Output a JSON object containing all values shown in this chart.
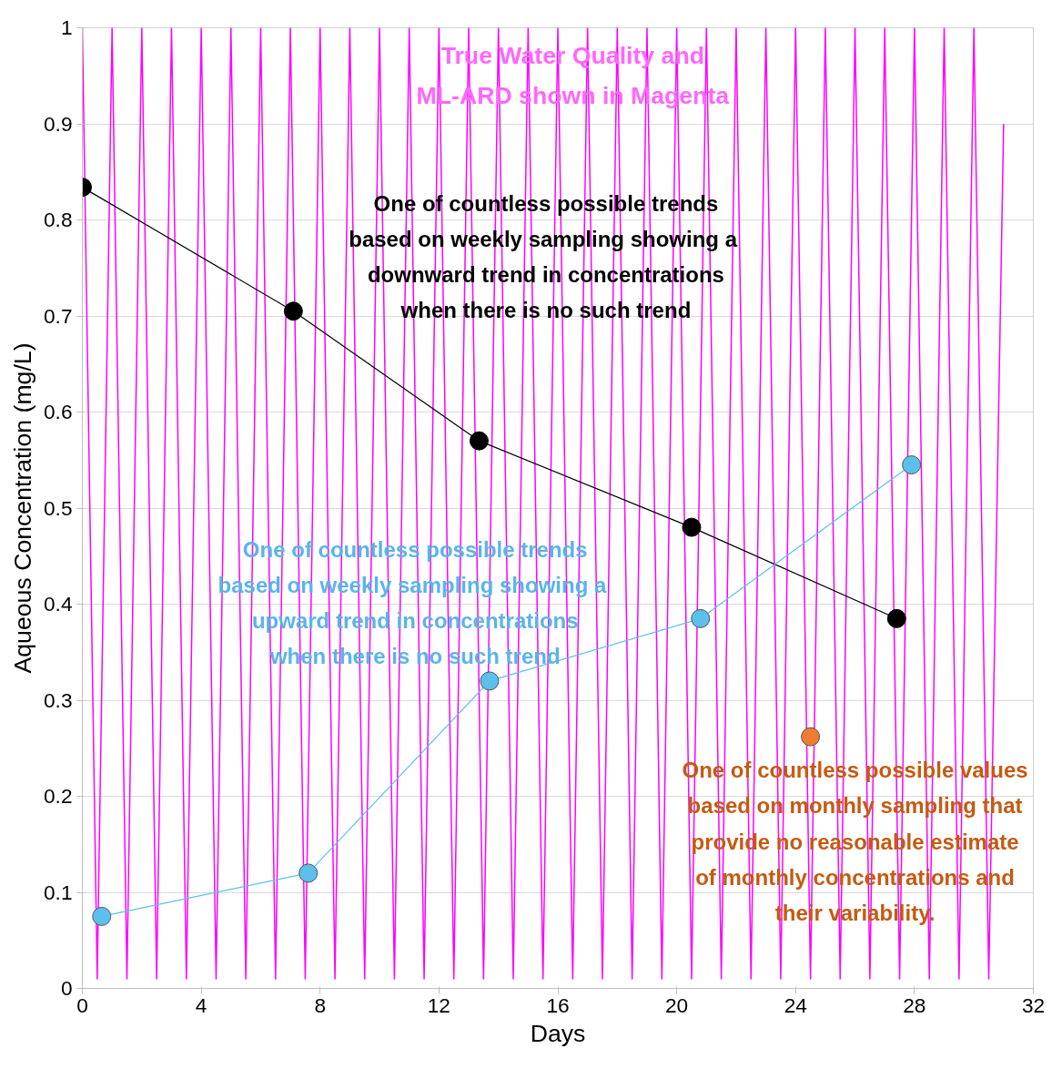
{
  "chart_data": {
    "type": "line",
    "xlabel": "Days",
    "ylabel": "Aqueous Concentration (mg/L)",
    "xlim": [
      0,
      32
    ],
    "xticks": [
      0,
      4,
      8,
      12,
      16,
      20,
      24,
      28,
      32
    ],
    "ylim": [
      0,
      1
    ],
    "yticks": [
      0,
      0.1,
      0.2,
      0.3,
      0.4,
      0.5,
      0.6,
      0.7,
      0.8,
      0.9,
      1
    ],
    "grid": "y",
    "series": [
      {
        "color": "#ff00ff",
        "marker": "none",
        "x": [
          0,
          0.5,
          1,
          1.5,
          2,
          2.5,
          3,
          3.5,
          4,
          4.5,
          5,
          5.5,
          6,
          6.5,
          7,
          7.5,
          8,
          8.5,
          9,
          9.5,
          10,
          10.5,
          11,
          11.5,
          12,
          12.5,
          13,
          13.5,
          14,
          14.5,
          15,
          15.5,
          16,
          16.5,
          17,
          17.5,
          18,
          18.5,
          19,
          19.5,
          20,
          20.5,
          21,
          21.5,
          22,
          22.5,
          23,
          23.5,
          24,
          24.5,
          25,
          25.5,
          26,
          26.5,
          27,
          27.5,
          28,
          28.5,
          29,
          29.5,
          30,
          30.5,
          31
        ],
        "values": [
          1,
          0.01,
          1,
          0.01,
          1,
          0.01,
          1,
          0.01,
          1,
          0.01,
          1,
          0.01,
          1,
          0.01,
          1,
          0.01,
          1,
          0.01,
          1,
          0.01,
          1,
          0.01,
          1,
          0.01,
          1,
          0.01,
          1,
          0.01,
          1,
          0.01,
          1,
          0.01,
          1,
          0.01,
          1,
          0.01,
          1,
          0.01,
          1,
          0.01,
          1,
          0.01,
          1,
          0.01,
          1,
          0.01,
          1,
          0.01,
          1,
          0.01,
          1,
          0.01,
          1,
          0.01,
          1,
          0.01,
          1,
          0.01,
          1,
          0.01,
          1,
          0.01,
          0.9
        ]
      },
      {
        "color": "#000000",
        "marker": "circle",
        "x": [
          0,
          7.1,
          13.35,
          20.5,
          27.4
        ],
        "values": [
          0.834,
          0.705,
          0.57,
          0.48,
          0.385
        ]
      },
      {
        "color": "#5bc0eb",
        "marker": "circle",
        "x": [
          0.65,
          7.6,
          13.7,
          20.8,
          27.9
        ],
        "values": [
          0.075,
          0.12,
          0.32,
          0.385,
          0.545
        ]
      },
      {
        "type": "scatter",
        "color": "#ed7d31",
        "marker": "circle",
        "x": [
          24.5
        ],
        "values": [
          0.262
        ]
      }
    ],
    "annotations": [
      "True Water Quality and\nML-ARD shown in Magenta",
      "One of countless possible trends\nbased on weekly  sampling showing a\ndownward trend in concentrations\nwhen there is no such trend",
      "One of countless possible trends\nbased on weekly  sampling showing a\nupward trend in concentrations\nwhen there is no such trend",
      "One of countless possible values\nbased on monthly sampling that\nprovide no reasonable estimate\nof monthly concentrations and\ntheir variability."
    ]
  }
}
